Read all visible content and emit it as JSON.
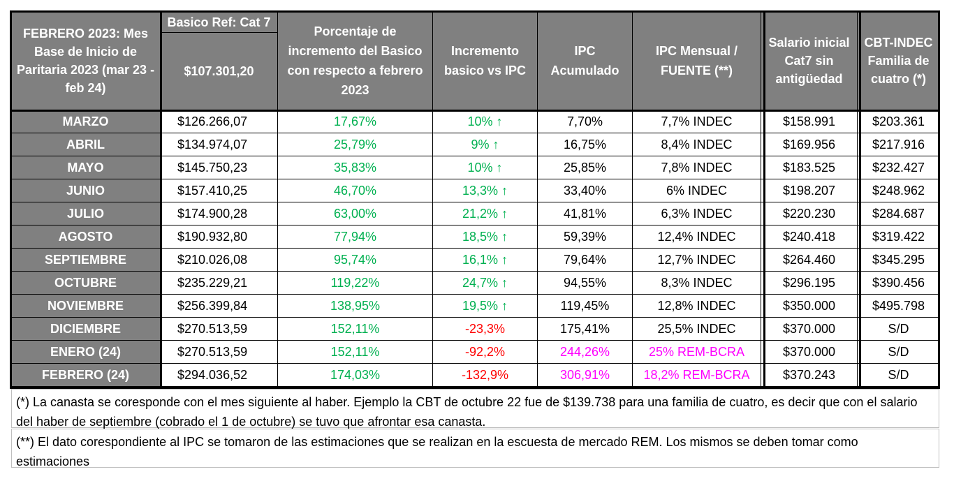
{
  "headers": {
    "mes_base": "FEBRERO 2023: Mes Base de Inicio de Paritaria 2023 (mar 23 - feb 24)",
    "basico_ref": "Basico Ref: Cat 7",
    "basico_ref_value": "$107.301,20",
    "porcentaje": "Porcentaje de incremento del Basico con respecto a febrero 2023",
    "incremento": "Incremento basico vs IPC",
    "ipc_acumulado": "IPC Acumulado",
    "ipc_mensual": "IPC Mensual / FUENTE (**)",
    "salario_inicial": "Salario inicial Cat7 sin antigüedad",
    "cbt_indec": "CBT-INDEC Familia de cuatro (*)"
  },
  "rows": [
    {
      "month": "MARZO",
      "basico": "$126.266,07",
      "pct": "17,67%",
      "inc": "10% ↑",
      "inc_color": "green",
      "ipc_acum": "7,70%",
      "ipc_acum_color": "black",
      "ipc_mens": "7,7% INDEC",
      "ipc_mens_color": "black",
      "salario": "$158.991",
      "cbt": "$203.361"
    },
    {
      "month": "ABRIL",
      "basico": "$134.974,07",
      "pct": "25,79%",
      "inc": "9% ↑",
      "inc_color": "green",
      "ipc_acum": "16,75%",
      "ipc_acum_color": "black",
      "ipc_mens": "8,4% INDEC",
      "ipc_mens_color": "black",
      "salario": "$169.956",
      "cbt": "$217.916"
    },
    {
      "month": "MAYO",
      "basico": "$145.750,23",
      "pct": "35,83%",
      "inc": "10% ↑",
      "inc_color": "green",
      "ipc_acum": "25,85%",
      "ipc_acum_color": "black",
      "ipc_mens": "7,8% INDEC",
      "ipc_mens_color": "black",
      "salario": "$183.525",
      "cbt": "$232.427"
    },
    {
      "month": "JUNIO",
      "basico": "$157.410,25",
      "pct": "46,70%",
      "inc": "13,3% ↑",
      "inc_color": "green",
      "ipc_acum": "33,40%",
      "ipc_acum_color": "black",
      "ipc_mens": "6% INDEC",
      "ipc_mens_color": "black",
      "salario": "$198.207",
      "cbt": "$248.962"
    },
    {
      "month": "JULIO",
      "basico": "$174.900,28",
      "pct": "63,00%",
      "inc": "21,2% ↑",
      "inc_color": "green",
      "ipc_acum": "41,81%",
      "ipc_acum_color": "black",
      "ipc_mens": "6,3% INDEC",
      "ipc_mens_color": "black",
      "salario": "$220.230",
      "cbt": "$284.687"
    },
    {
      "month": "AGOSTO",
      "basico": "$190.932,80",
      "pct": "77,94%",
      "inc": "18,5% ↑",
      "inc_color": "green",
      "ipc_acum": "59,39%",
      "ipc_acum_color": "black",
      "ipc_mens": "12,4% INDEC",
      "ipc_mens_color": "black",
      "salario": "$240.418",
      "cbt": "$319.422"
    },
    {
      "month": "SEPTIEMBRE",
      "basico": "$210.026,08",
      "pct": "95,74%",
      "inc": "16,1% ↑",
      "inc_color": "green",
      "ipc_acum": "79,64%",
      "ipc_acum_color": "black",
      "ipc_mens": "12,7% INDEC",
      "ipc_mens_color": "black",
      "salario": "$264.460",
      "cbt": "$345.295"
    },
    {
      "month": "OCTUBRE",
      "basico": "$235.229,21",
      "pct": "119,22%",
      "inc": "24,7% ↑",
      "inc_color": "green",
      "ipc_acum": "94,55%",
      "ipc_acum_color": "black",
      "ipc_mens": "8,3% INDEC",
      "ipc_mens_color": "black",
      "salario": "$296.195",
      "cbt": "$390.456"
    },
    {
      "month": "NOVIEMBRE",
      "basico": "$256.399,84",
      "pct": "138,95%",
      "inc": "19,5% ↑",
      "inc_color": "green",
      "ipc_acum": "119,45%",
      "ipc_acum_color": "black",
      "ipc_mens": "12,8% INDEC",
      "ipc_mens_color": "black",
      "salario": "$350.000",
      "cbt": "$495.798"
    },
    {
      "month": "DICIEMBRE",
      "basico": "$270.513,59",
      "pct": "152,11%",
      "inc": "-23,3%",
      "inc_color": "red",
      "ipc_acum": "175,41%",
      "ipc_acum_color": "black",
      "ipc_mens": "25,5% INDEC",
      "ipc_mens_color": "black",
      "salario": "$370.000",
      "cbt": "S/D"
    },
    {
      "month": "ENERO (24)",
      "basico": "$270.513,59",
      "pct": "152,11%",
      "inc": "-92,2%",
      "inc_color": "red",
      "ipc_acum": "244,26%",
      "ipc_acum_color": "magenta",
      "ipc_mens": "25% REM-BCRA",
      "ipc_mens_color": "magenta",
      "salario": "$370.000",
      "cbt": "S/D"
    },
    {
      "month": "FEBRERO (24)",
      "basico": "$294.036,52",
      "pct": "174,03%",
      "inc": "-132,9%",
      "inc_color": "red",
      "ipc_acum": "306,91%",
      "ipc_acum_color": "magenta",
      "ipc_mens": "18,2% REM-BCRA",
      "ipc_mens_color": "magenta",
      "salario": "$370.243",
      "cbt": "S/D"
    }
  ],
  "notes": {
    "note1": "(*) La canasta se coresponde con el mes siguiente al haber. Ejemplo la CBT de octubre 22 fue de $139.738 para una familia de cuatro, es decir que con el salario del haber de septiembre (cobrado el 1 de octubre) se tuvo que afrontar esa canasta.",
    "note2": "(**) El dato corespondiente al IPC se tomaron de las estimaciones que se realizan en la escuesta de mercado REM. Los mismos se deben tomar como estimaciones"
  },
  "colors": {
    "header_bg": "#808080",
    "positive": "#00b050",
    "negative": "#ff0000",
    "estimate": "#ff00ff"
  }
}
